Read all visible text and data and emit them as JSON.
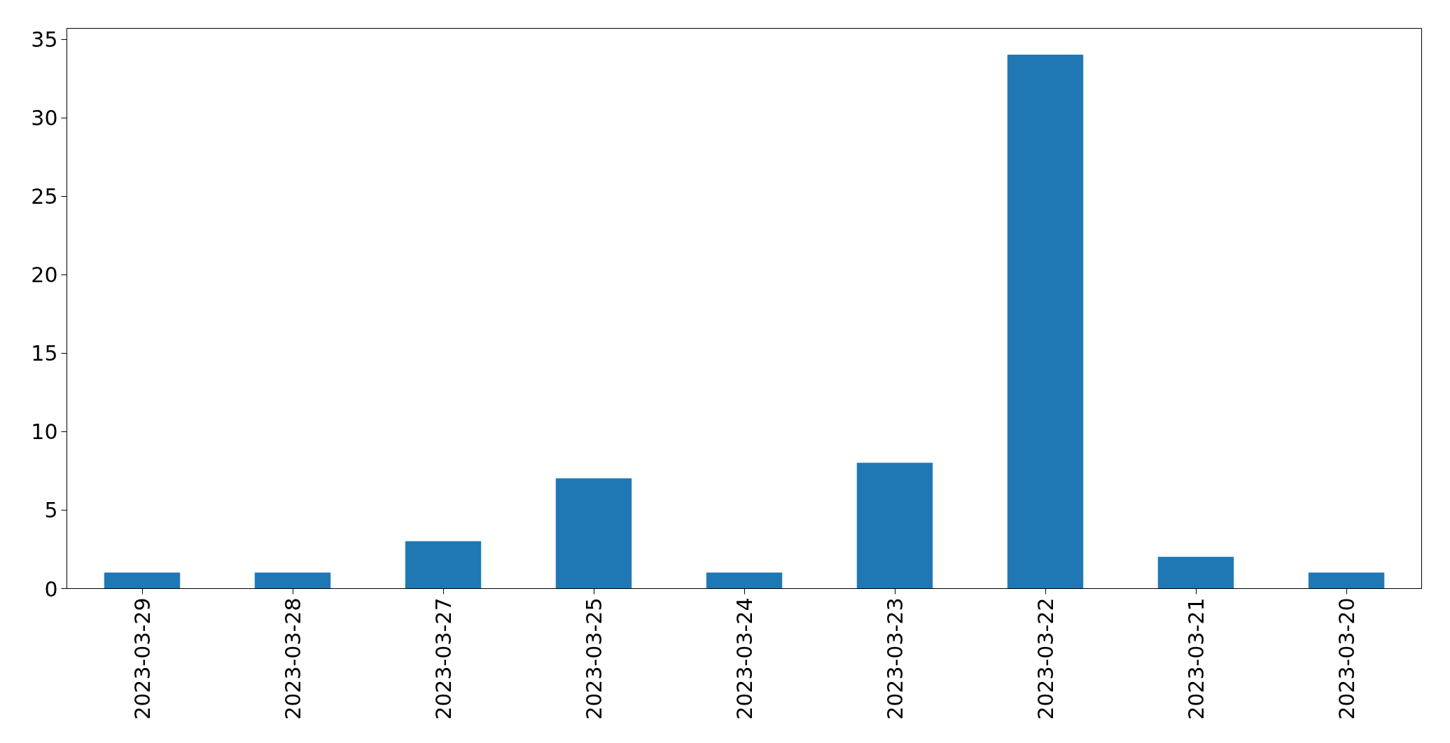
{
  "chart_data": {
    "type": "bar",
    "categories": [
      "2023-03-29",
      "2023-03-28",
      "2023-03-27",
      "2023-03-25",
      "2023-03-24",
      "2023-03-23",
      "2023-03-22",
      "2023-03-21",
      "2023-03-20"
    ],
    "values": [
      1,
      1,
      3,
      7,
      1,
      8,
      34,
      2,
      1
    ],
    "color": "#1f77b4",
    "ylim": [
      0,
      35.7
    ],
    "yticks": [
      0,
      5,
      10,
      15,
      20,
      25,
      30,
      35
    ],
    "grid": false
  }
}
